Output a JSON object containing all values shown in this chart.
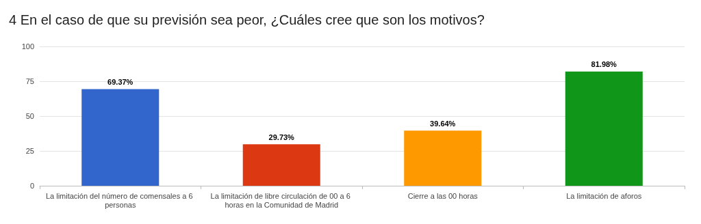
{
  "chart_data": {
    "type": "bar",
    "title": "4 En el caso de que su previsión sea peor, ¿Cuáles cree que son los motivos?",
    "categories": [
      "La limitación del número de comensales a 6 personas",
      "La limitación de libre circulación de 00 a 6 horas en la Comunidad de Madrid",
      "Cierre a las 00 horas",
      "La limitación de aforos"
    ],
    "values": [
      69.37,
      29.73,
      39.64,
      81.98
    ],
    "colors": [
      "#3366cc",
      "#dc3912",
      "#ff9900",
      "#109618"
    ],
    "value_labels": [
      "69.37%",
      "29.73%",
      "39.64%",
      "81.98%"
    ],
    "ylim": [
      0,
      100
    ],
    "yticks": [
      0,
      25,
      50,
      75,
      100
    ],
    "grid": "y"
  }
}
